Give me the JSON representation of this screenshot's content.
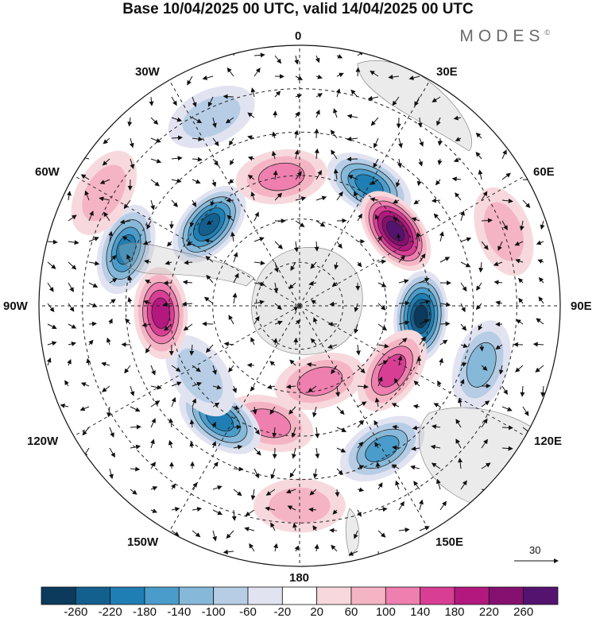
{
  "title": "Base 10/04/2025 00 UTC, valid 14/04/2025 00 UTC",
  "brand": {
    "name": "MODES",
    "mark": "©"
  },
  "map": {
    "projection": "south-polar-stereographic",
    "longitude_labels": {
      "top": "0",
      "bottom": "180",
      "left": "90W",
      "right": "90E",
      "upper_left_1": "30W",
      "upper_left_2": "60W",
      "upper_right_1": "30E",
      "upper_right_2": "60E",
      "lower_left_1": "120W",
      "lower_left_2": "150W",
      "lower_right_1": "120E",
      "lower_right_2": "150E"
    },
    "vector_scale": {
      "value": "30"
    }
  },
  "colorbar": {
    "ticks": [
      "-260",
      "-220",
      "-180",
      "-140",
      "-100",
      "-60",
      "-20",
      "20",
      "60",
      "100",
      "140",
      "180",
      "220",
      "260"
    ],
    "colors": [
      "#0b3a5c",
      "#13608f",
      "#1f7fb4",
      "#4a9ccb",
      "#86b9d9",
      "#b6cde5",
      "#e2e3f1",
      "#ffffff",
      "#f7d9dd",
      "#f5b4c4",
      "#ee7fae",
      "#d93e95",
      "#b3187f",
      "#85106f",
      "#551370"
    ]
  },
  "anomalies": [
    {
      "id": "neg-30E",
      "lon": 30,
      "lat": -58,
      "level": 2
    },
    {
      "id": "pos-50E",
      "lon": 52,
      "lat": -62,
      "level": 14
    },
    {
      "id": "neg-90E",
      "lon": 95,
      "lat": -62,
      "level": 0
    },
    {
      "id": "pos-120E",
      "lon": 125,
      "lat": -64,
      "level": 11
    },
    {
      "id": "neg-105E",
      "lon": 108,
      "lat": -46,
      "level": 4
    },
    {
      "id": "neg-150E",
      "lon": 150,
      "lat": -52,
      "level": 3
    },
    {
      "id": "pos-180",
      "lon": 180,
      "lat": -44,
      "level": 9
    },
    {
      "id": "pos-165W",
      "lon": -165,
      "lat": -62,
      "level": 10
    },
    {
      "id": "neg-145W",
      "lon": -145,
      "lat": -58,
      "level": 2
    },
    {
      "id": "neg-125W",
      "lon": -125,
      "lat": -62,
      "level": 5
    },
    {
      "id": "pos-95W",
      "lon": -93,
      "lat": -58,
      "level": 12
    },
    {
      "id": "neg-70W",
      "lon": -72,
      "lat": -48,
      "level": 2
    },
    {
      "id": "neg-45W",
      "lon": -48,
      "lat": -62,
      "level": 1
    },
    {
      "id": "pos-10W",
      "lon": -8,
      "lat": -60,
      "level": 10
    },
    {
      "id": "neg-20W",
      "lon": -25,
      "lat": -42,
      "level": 5
    },
    {
      "id": "pos-60W",
      "lon": -60,
      "lat": -38,
      "level": 9
    },
    {
      "id": "pos-65E",
      "lon": 70,
      "lat": -40,
      "level": 9
    },
    {
      "id": "pos-165E",
      "lon": 165,
      "lat": -72,
      "level": 10
    }
  ]
}
